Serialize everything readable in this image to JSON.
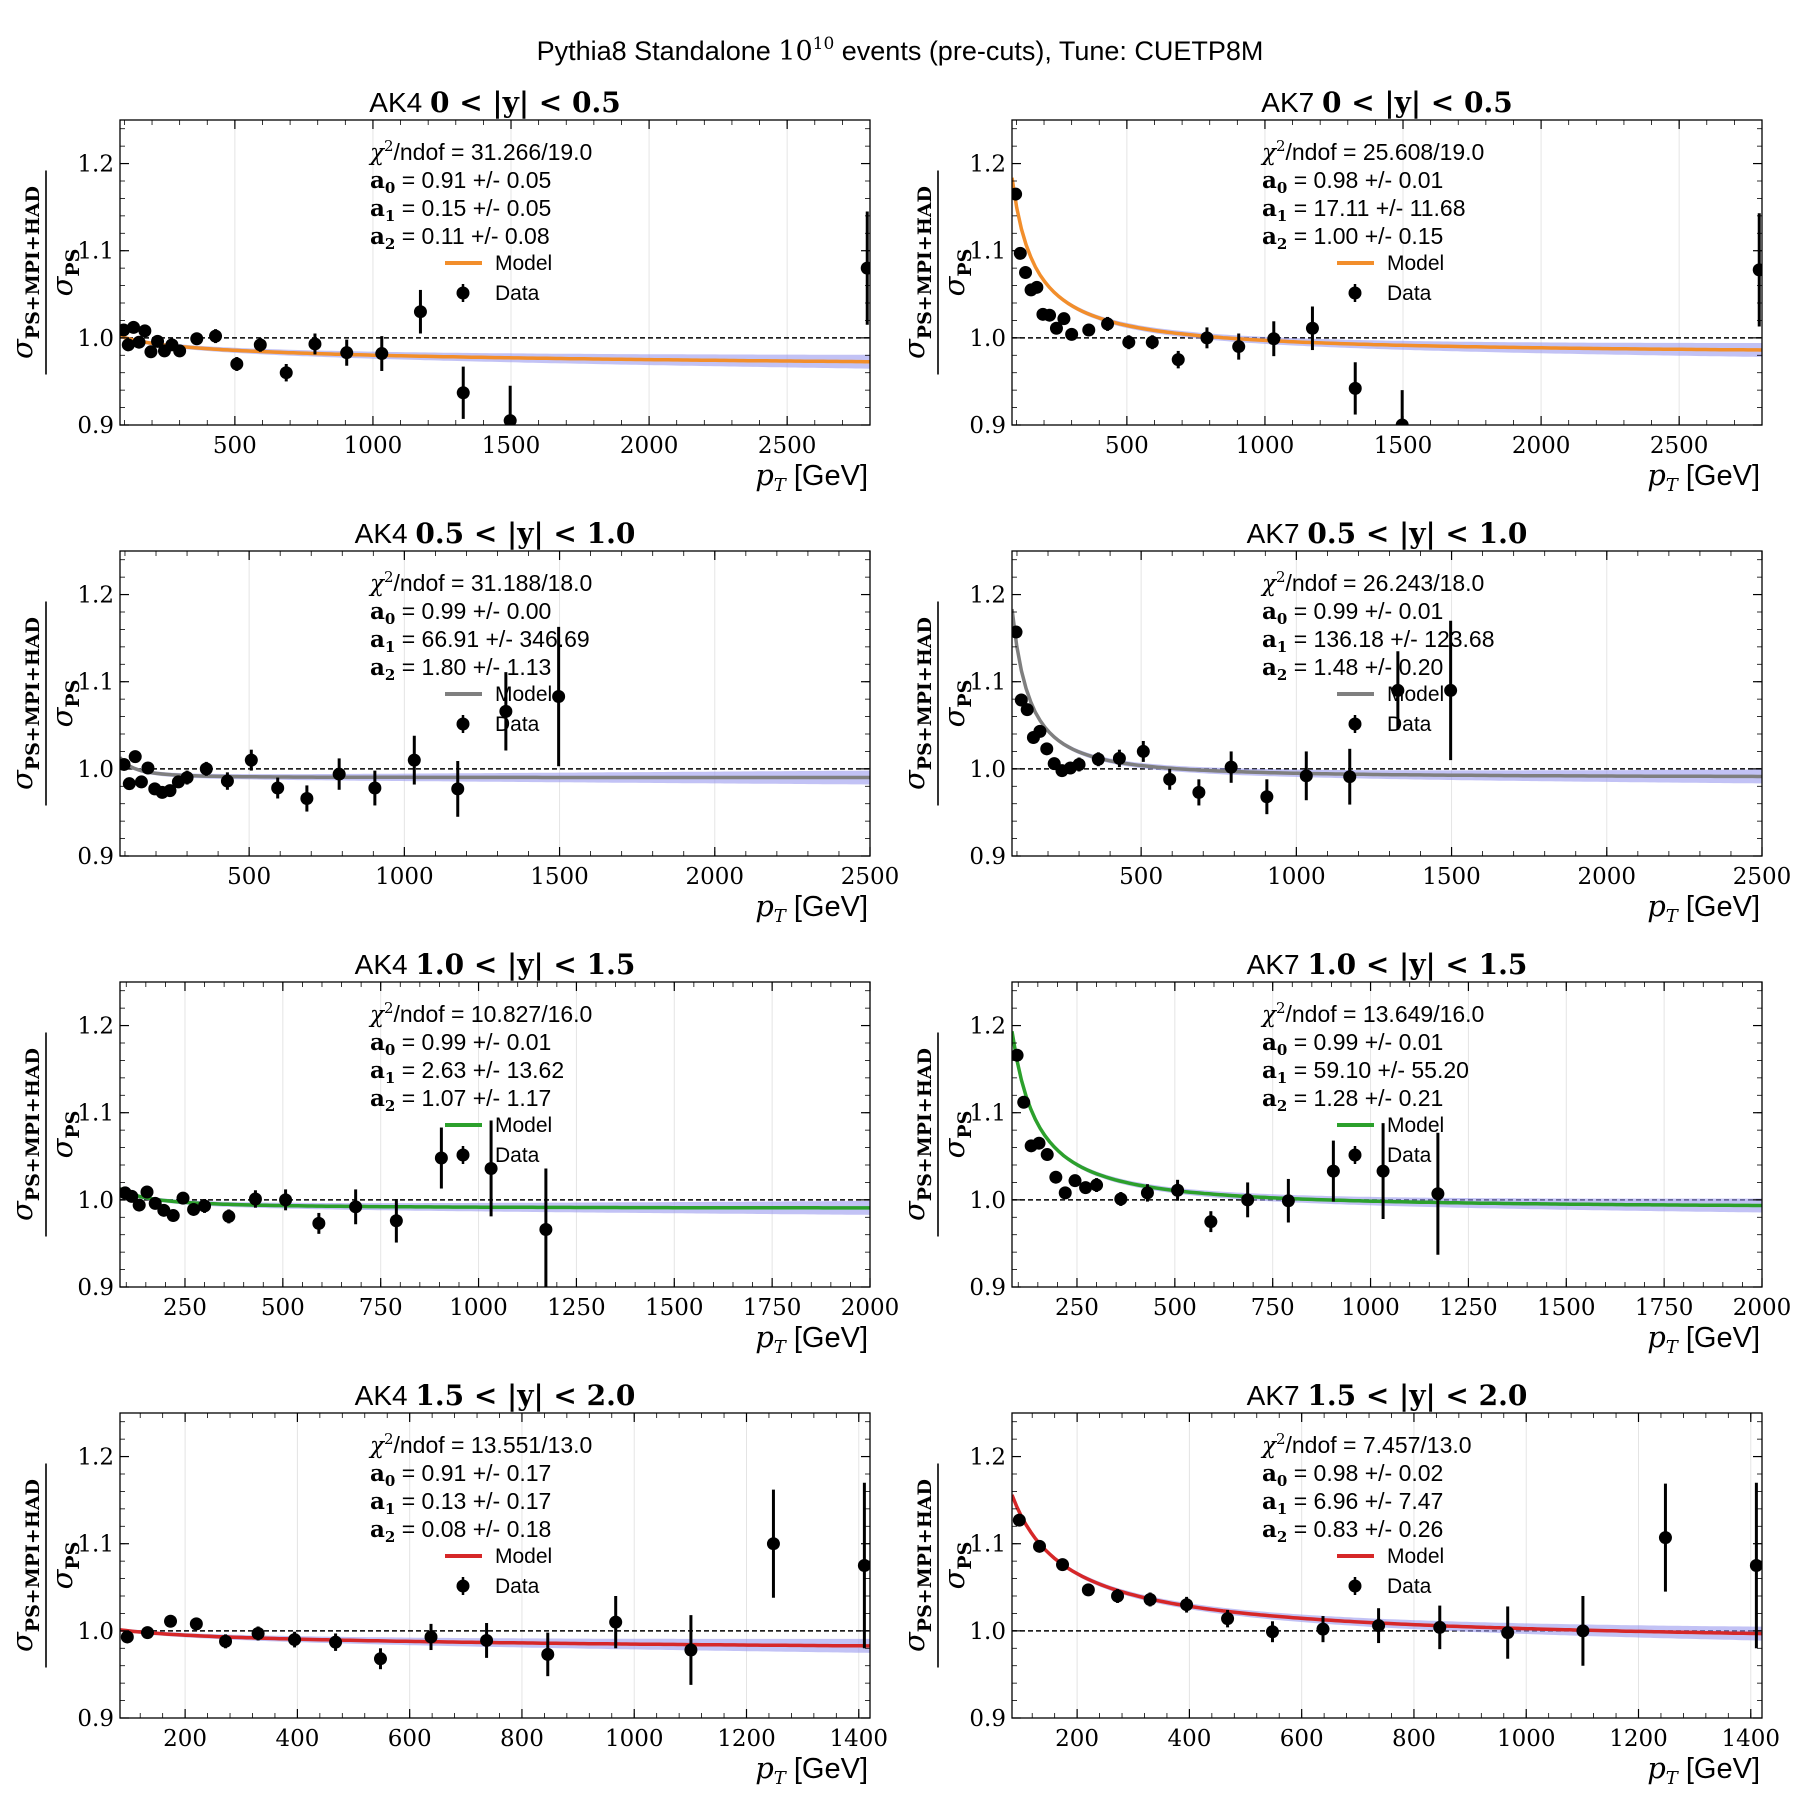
{
  "suptitle": "Pythia8 Standalone 10^10 events (pre-cuts), Tune: CUETP8M",
  "suptitle_parts": {
    "pre": "Pythia8 Standalone ",
    "base": "10",
    "exp": "10",
    "post": " events (pre-cuts), Tune: CUETP8M"
  },
  "ylabel": {
    "numerator": "PS+MPI+HAD",
    "denominator": "PS",
    "symbol": "σ"
  },
  "xlabel": {
    "symbol": "p",
    "sub": "T",
    "unit": " [GeV]"
  },
  "legend": {
    "model": "Model",
    "data": "Data"
  },
  "colors": {
    "band": "#9999ee",
    "data": "#000000",
    "ref_line": "#000000"
  },
  "chart_data": [
    {
      "type": "scatter",
      "title": "AK4 0 < |y| < 0.5",
      "title_parts": {
        "pre": "AK4 ",
        "math": "0 < |y| < 0.5"
      },
      "model_color": "#f28e2b",
      "chi2": "31.266/19.0",
      "params": [
        {
          "name": "a",
          "idx": "0",
          "text": " = 0.91 +/- 0.05"
        },
        {
          "name": "a",
          "idx": "1",
          "text": " = 0.15 +/- 0.05"
        },
        {
          "name": "a",
          "idx": "2",
          "text": " = 0.11 +/- 0.08"
        }
      ],
      "model": {
        "a0": 0.91,
        "a1": 0.15,
        "a2": 0.11
      },
      "xlim": [
        84,
        2800
      ],
      "ylim": [
        0.9,
        1.25
      ],
      "xticks": [
        500,
        1000,
        1500,
        2000,
        2500
      ],
      "yticks": [
        0.9,
        1.0,
        1.1,
        1.2
      ],
      "data": [
        [
          97,
          1.009,
          0.006
        ],
        [
          114,
          0.992,
          0.006
        ],
        [
          133,
          1.012,
          0.006
        ],
        [
          153,
          0.995,
          0.006
        ],
        [
          174,
          1.008,
          0.006
        ],
        [
          196,
          0.984,
          0.006
        ],
        [
          220,
          0.996,
          0.006
        ],
        [
          245,
          0.985,
          0.006
        ],
        [
          272,
          0.992,
          0.006
        ],
        [
          300,
          0.985,
          0.007
        ],
        [
          362,
          0.999,
          0.006
        ],
        [
          430,
          1.002,
          0.008
        ],
        [
          507,
          0.97,
          0.008
        ],
        [
          592,
          0.992,
          0.008
        ],
        [
          686,
          0.96,
          0.01
        ],
        [
          790,
          0.993,
          0.012
        ],
        [
          905,
          0.983,
          0.015
        ],
        [
          1032,
          0.982,
          0.02
        ],
        [
          1172,
          1.03,
          0.025
        ],
        [
          1327,
          0.937,
          0.03
        ],
        [
          1497,
          0.905,
          0.04
        ],
        [
          2790,
          1.08,
          0.065
        ]
      ]
    },
    {
      "type": "scatter",
      "title": "AK7 0 < |y| < 0.5",
      "title_parts": {
        "pre": "AK7 ",
        "math": "0 < |y| < 0.5"
      },
      "model_color": "#f28e2b",
      "chi2": "25.608/19.0",
      "params": [
        {
          "name": "a",
          "idx": "0",
          "text": " = 0.98 +/- 0.01"
        },
        {
          "name": "a",
          "idx": "1",
          "text": " = 17.11 +/- 11.68"
        },
        {
          "name": "a",
          "idx": "2",
          "text": " = 1.00 +/- 0.15"
        }
      ],
      "model": {
        "a0": 0.98,
        "a1": 17.11,
        "a2": 1.0
      },
      "xlim": [
        84,
        2800
      ],
      "ylim": [
        0.9,
        1.25
      ],
      "xticks": [
        500,
        1000,
        1500,
        2000,
        2500
      ],
      "yticks": [
        0.9,
        1.0,
        1.1,
        1.2
      ],
      "data": [
        [
          97,
          1.165,
          0.006
        ],
        [
          114,
          1.097,
          0.006
        ],
        [
          133,
          1.075,
          0.006
        ],
        [
          153,
          1.055,
          0.006
        ],
        [
          174,
          1.058,
          0.006
        ],
        [
          196,
          1.027,
          0.006
        ],
        [
          220,
          1.026,
          0.006
        ],
        [
          245,
          1.011,
          0.006
        ],
        [
          272,
          1.022,
          0.006
        ],
        [
          300,
          1.004,
          0.007
        ],
        [
          362,
          1.009,
          0.006
        ],
        [
          430,
          1.016,
          0.008
        ],
        [
          507,
          0.995,
          0.008
        ],
        [
          592,
          0.995,
          0.008
        ],
        [
          686,
          0.975,
          0.01
        ],
        [
          790,
          1.0,
          0.012
        ],
        [
          905,
          0.99,
          0.015
        ],
        [
          1032,
          0.999,
          0.02
        ],
        [
          1172,
          1.011,
          0.025
        ],
        [
          1327,
          0.942,
          0.03
        ],
        [
          1497,
          0.9,
          0.04
        ],
        [
          2790,
          1.078,
          0.065
        ]
      ]
    },
    {
      "type": "scatter",
      "title": "AK4 0.5 < |y| < 1.0",
      "title_parts": {
        "pre": "AK4 ",
        "math": "0.5 < |y| < 1.0"
      },
      "model_color": "#7f7f7f",
      "chi2": "31.188/18.0",
      "params": [
        {
          "name": "a",
          "idx": "0",
          "text": " = 0.99 +/- 0.00"
        },
        {
          "name": "a",
          "idx": "1",
          "text": " = 66.91 +/- 346.69"
        },
        {
          "name": "a",
          "idx": "2",
          "text": " = 1.80 +/- 1.13"
        }
      ],
      "model": {
        "a0": 0.99,
        "a1": 66.91,
        "a2": 1.8
      },
      "xlim": [
        84,
        2500
      ],
      "ylim": [
        0.9,
        1.25
      ],
      "xticks": [
        500,
        1000,
        1500,
        2000,
        2500
      ],
      "yticks": [
        0.9,
        1.0,
        1.1,
        1.2
      ],
      "data": [
        [
          97,
          1.005,
          0.006
        ],
        [
          114,
          0.983,
          0.006
        ],
        [
          133,
          1.014,
          0.006
        ],
        [
          153,
          0.985,
          0.006
        ],
        [
          174,
          1.001,
          0.006
        ],
        [
          196,
          0.977,
          0.006
        ],
        [
          220,
          0.973,
          0.006
        ],
        [
          245,
          0.975,
          0.006
        ],
        [
          272,
          0.985,
          0.007
        ],
        [
          300,
          0.99,
          0.008
        ],
        [
          362,
          1.0,
          0.008
        ],
        [
          430,
          0.986,
          0.01
        ],
        [
          507,
          1.01,
          0.012
        ],
        [
          592,
          0.978,
          0.012
        ],
        [
          686,
          0.966,
          0.015
        ],
        [
          790,
          0.994,
          0.018
        ],
        [
          905,
          0.978,
          0.02
        ],
        [
          1032,
          1.01,
          0.028
        ],
        [
          1172,
          0.977,
          0.032
        ],
        [
          1327,
          1.066,
          0.045
        ],
        [
          1497,
          1.083,
          0.08
        ]
      ]
    },
    {
      "type": "scatter",
      "title": "AK7 0.5 < |y| < 1.0",
      "title_parts": {
        "pre": "AK7 ",
        "math": "0.5 < |y| < 1.0"
      },
      "model_color": "#7f7f7f",
      "chi2": "26.243/18.0",
      "params": [
        {
          "name": "a",
          "idx": "0",
          "text": " = 0.99 +/- 0.01"
        },
        {
          "name": "a",
          "idx": "1",
          "text": " = 136.18 +/- 123.68"
        },
        {
          "name": "a",
          "idx": "2",
          "text": " = 1.48 +/- 0.20"
        }
      ],
      "model": {
        "a0": 0.99,
        "a1": 136.18,
        "a2": 1.48
      },
      "xlim": [
        84,
        2500
      ],
      "ylim": [
        0.9,
        1.25
      ],
      "xticks": [
        500,
        1000,
        1500,
        2000,
        2500
      ],
      "yticks": [
        0.9,
        1.0,
        1.1,
        1.2
      ],
      "data": [
        [
          97,
          1.157,
          0.006
        ],
        [
          114,
          1.079,
          0.006
        ],
        [
          133,
          1.068,
          0.006
        ],
        [
          153,
          1.036,
          0.006
        ],
        [
          174,
          1.043,
          0.006
        ],
        [
          196,
          1.023,
          0.006
        ],
        [
          220,
          1.006,
          0.006
        ],
        [
          245,
          0.998,
          0.006
        ],
        [
          272,
          1.001,
          0.007
        ],
        [
          300,
          1.005,
          0.008
        ],
        [
          362,
          1.011,
          0.008
        ],
        [
          430,
          1.012,
          0.01
        ],
        [
          507,
          1.02,
          0.012
        ],
        [
          592,
          0.988,
          0.012
        ],
        [
          686,
          0.973,
          0.015
        ],
        [
          790,
          1.002,
          0.018
        ],
        [
          905,
          0.968,
          0.02
        ],
        [
          1032,
          0.992,
          0.028
        ],
        [
          1172,
          0.991,
          0.032
        ],
        [
          1327,
          1.09,
          0.045
        ],
        [
          1497,
          1.09,
          0.08
        ]
      ]
    },
    {
      "type": "scatter",
      "title": "AK4 1.0 < |y| < 1.5",
      "title_parts": {
        "pre": "AK4 ",
        "math": "1.0 < |y| < 1.5"
      },
      "model_color": "#2ca02c",
      "chi2": "10.827/16.0",
      "params": [
        {
          "name": "a",
          "idx": "0",
          "text": " = 0.99 +/- 0.01"
        },
        {
          "name": "a",
          "idx": "1",
          "text": " = 2.63 +/- 13.62"
        },
        {
          "name": "a",
          "idx": "2",
          "text": " = 1.07 +/- 1.17"
        }
      ],
      "model": {
        "a0": 0.99,
        "a1": 2.63,
        "a2": 1.07
      },
      "xlim": [
        84,
        2000
      ],
      "ylim": [
        0.9,
        1.25
      ],
      "xticks": [
        250,
        500,
        750,
        1000,
        1250,
        1500,
        1750,
        2000
      ],
      "yticks": [
        0.9,
        1.0,
        1.1,
        1.2
      ],
      "data": [
        [
          97,
          1.008,
          0.006
        ],
        [
          114,
          1.004,
          0.006
        ],
        [
          133,
          0.994,
          0.006
        ],
        [
          153,
          1.009,
          0.006
        ],
        [
          174,
          0.996,
          0.006
        ],
        [
          196,
          0.988,
          0.006
        ],
        [
          220,
          0.982,
          0.006
        ],
        [
          245,
          1.002,
          0.006
        ],
        [
          272,
          0.989,
          0.007
        ],
        [
          300,
          0.993,
          0.008
        ],
        [
          362,
          0.981,
          0.008
        ],
        [
          430,
          1.001,
          0.01
        ],
        [
          507,
          1.0,
          0.012
        ],
        [
          592,
          0.973,
          0.012
        ],
        [
          686,
          0.992,
          0.02
        ],
        [
          790,
          0.976,
          0.025
        ],
        [
          905,
          1.048,
          0.035
        ],
        [
          1032,
          1.036,
          0.055
        ],
        [
          1172,
          0.966,
          0.07
        ]
      ]
    },
    {
      "type": "scatter",
      "title": "AK7 1.0 < |y| < 1.5",
      "title_parts": {
        "pre": "AK7 ",
        "math": "1.0 < |y| < 1.5"
      },
      "model_color": "#2ca02c",
      "chi2": "13.649/16.0",
      "params": [
        {
          "name": "a",
          "idx": "0",
          "text": " = 0.99 +/- 0.01"
        },
        {
          "name": "a",
          "idx": "1",
          "text": " = 59.10 +/- 55.20"
        },
        {
          "name": "a",
          "idx": "2",
          "text": " = 1.28 +/- 0.21"
        }
      ],
      "model": {
        "a0": 0.99,
        "a1": 59.1,
        "a2": 1.28
      },
      "xlim": [
        84,
        2000
      ],
      "ylim": [
        0.9,
        1.25
      ],
      "xticks": [
        250,
        500,
        750,
        1000,
        1250,
        1500,
        1750,
        2000
      ],
      "yticks": [
        0.9,
        1.0,
        1.1,
        1.2
      ],
      "data": [
        [
          97,
          1.166,
          0.006
        ],
        [
          114,
          1.112,
          0.006
        ],
        [
          133,
          1.062,
          0.006
        ],
        [
          153,
          1.065,
          0.006
        ],
        [
          174,
          1.052,
          0.006
        ],
        [
          196,
          1.026,
          0.006
        ],
        [
          220,
          1.008,
          0.006
        ],
        [
          245,
          1.022,
          0.006
        ],
        [
          272,
          1.014,
          0.007
        ],
        [
          300,
          1.017,
          0.008
        ],
        [
          362,
          1.001,
          0.008
        ],
        [
          430,
          1.008,
          0.01
        ],
        [
          507,
          1.011,
          0.012
        ],
        [
          592,
          0.975,
          0.012
        ],
        [
          686,
          1.0,
          0.02
        ],
        [
          790,
          0.999,
          0.025
        ],
        [
          905,
          1.033,
          0.035
        ],
        [
          1032,
          1.033,
          0.055
        ],
        [
          1172,
          1.007,
          0.07
        ]
      ]
    },
    {
      "type": "scatter",
      "title": "AK4 1.5 < |y| < 2.0",
      "title_parts": {
        "pre": "AK4 ",
        "math": "1.5 < |y| < 2.0"
      },
      "model_color": "#d62728",
      "chi2": "13.551/13.0",
      "params": [
        {
          "name": "a",
          "idx": "0",
          "text": " = 0.91 +/- 0.17"
        },
        {
          "name": "a",
          "idx": "1",
          "text": " = 0.13 +/- 0.17"
        },
        {
          "name": "a",
          "idx": "2",
          "text": " = 0.08 +/- 0.18"
        }
      ],
      "model": {
        "a0": 0.91,
        "a1": 0.13,
        "a2": 0.08
      },
      "xlim": [
        84,
        1420
      ],
      "ylim": [
        0.9,
        1.25
      ],
      "xticks": [
        200,
        400,
        600,
        800,
        1000,
        1200,
        1400
      ],
      "yticks": [
        0.9,
        1.0,
        1.1,
        1.2
      ],
      "data": [
        [
          97,
          0.993,
          0.006
        ],
        [
          133,
          0.998,
          0.006
        ],
        [
          174,
          1.011,
          0.006
        ],
        [
          220,
          1.008,
          0.006
        ],
        [
          272,
          0.988,
          0.008
        ],
        [
          330,
          0.997,
          0.008
        ],
        [
          395,
          0.99,
          0.009
        ],
        [
          468,
          0.987,
          0.01
        ],
        [
          548,
          0.968,
          0.012
        ],
        [
          638,
          0.993,
          0.015
        ],
        [
          737,
          0.989,
          0.02
        ],
        [
          846,
          0.973,
          0.025
        ],
        [
          967,
          1.01,
          0.03
        ],
        [
          1101,
          0.978,
          0.04
        ],
        [
          1248,
          1.1,
          0.062
        ],
        [
          1410,
          1.075,
          0.095
        ]
      ]
    },
    {
      "type": "scatter",
      "title": "AK7 1.5 < |y| < 2.0",
      "title_parts": {
        "pre": "AK7 ",
        "math": "1.5 < |y| < 2.0"
      },
      "model_color": "#d62728",
      "chi2": "7.457/13.0",
      "params": [
        {
          "name": "a",
          "idx": "0",
          "text": " = 0.98 +/- 0.02"
        },
        {
          "name": "a",
          "idx": "1",
          "text": " = 6.96 +/- 7.47"
        },
        {
          "name": "a",
          "idx": "2",
          "text": " = 0.83 +/- 0.26"
        }
      ],
      "model": {
        "a0": 0.98,
        "a1": 6.96,
        "a2": 0.83
      },
      "xlim": [
        84,
        1420
      ],
      "ylim": [
        0.9,
        1.25
      ],
      "xticks": [
        200,
        400,
        600,
        800,
        1000,
        1200,
        1400
      ],
      "yticks": [
        0.9,
        1.0,
        1.1,
        1.2
      ],
      "data": [
        [
          97,
          1.127,
          0.006
        ],
        [
          133,
          1.097,
          0.006
        ],
        [
          174,
          1.076,
          0.006
        ],
        [
          220,
          1.047,
          0.006
        ],
        [
          272,
          1.04,
          0.008
        ],
        [
          330,
          1.036,
          0.008
        ],
        [
          395,
          1.03,
          0.009
        ],
        [
          468,
          1.014,
          0.01
        ],
        [
          548,
          0.999,
          0.012
        ],
        [
          638,
          1.002,
          0.015
        ],
        [
          737,
          1.006,
          0.02
        ],
        [
          846,
          1.004,
          0.025
        ],
        [
          967,
          0.998,
          0.03
        ],
        [
          1101,
          1.0,
          0.04
        ],
        [
          1248,
          1.107,
          0.062
        ],
        [
          1410,
          1.075,
          0.095
        ]
      ]
    }
  ]
}
